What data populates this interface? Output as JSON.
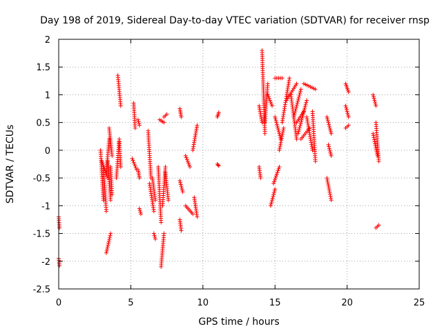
{
  "chart_data": {
    "type": "scatter",
    "title": "Day 198 of 2019, Sidereal Day-to-day VTEC variation (SDTVAR) for receiver rnsp",
    "xlabel": "GPS time / hours",
    "ylabel": "SDTVAR / TECUs",
    "xlim": [
      0,
      25
    ],
    "ylim": [
      -2.5,
      2
    ],
    "xticks": [
      "0",
      "5",
      "10",
      "15",
      "20",
      "25"
    ],
    "yticks": [
      "2",
      "1.5",
      "1",
      "0.5",
      "0",
      "-0.5",
      "-1",
      "-1.5",
      "-2",
      "-2.5"
    ],
    "grid": true,
    "legend": "none",
    "marker": "plus",
    "color": "#ff0000",
    "segments": [
      [
        0.0,
        -1.2,
        0.05,
        -1.4
      ],
      [
        0.0,
        -1.95,
        0.05,
        -2.08
      ],
      [
        2.9,
        0.0,
        3.1,
        -0.9
      ],
      [
        3.0,
        -0.2,
        3.4,
        -0.5
      ],
      [
        3.1,
        -0.3,
        3.3,
        -1.1
      ],
      [
        3.3,
        -0.4,
        3.5,
        0.2
      ],
      [
        3.4,
        -0.2,
        3.6,
        -0.9
      ],
      [
        3.5,
        0.4,
        3.7,
        -0.1
      ],
      [
        3.6,
        -0.3,
        3.7,
        -0.8
      ],
      [
        3.3,
        -1.85,
        3.6,
        -1.5
      ],
      [
        4.1,
        1.35,
        4.3,
        0.8
      ],
      [
        4.0,
        -0.5,
        4.2,
        0.2
      ],
      [
        4.2,
        0.15,
        4.3,
        -0.3
      ],
      [
        5.2,
        0.85,
        5.3,
        0.4
      ],
      [
        5.1,
        -0.15,
        5.4,
        -0.35
      ],
      [
        5.5,
        -0.35,
        5.6,
        -0.5
      ],
      [
        5.5,
        0.55,
        5.6,
        0.45
      ],
      [
        5.6,
        -1.05,
        5.7,
        -1.15
      ],
      [
        6.2,
        0.35,
        6.4,
        -0.5
      ],
      [
        6.3,
        -0.6,
        6.6,
        -1.1
      ],
      [
        6.5,
        -0.5,
        6.7,
        -0.9
      ],
      [
        6.6,
        -1.5,
        6.7,
        -1.6
      ],
      [
        6.9,
        -0.3,
        7.1,
        -1.3
      ],
      [
        7.0,
        0.55,
        7.3,
        0.5
      ],
      [
        7.2,
        -1.0,
        7.4,
        -0.3
      ],
      [
        7.1,
        -2.1,
        7.3,
        -1.5
      ],
      [
        7.3,
        0.6,
        7.5,
        0.65
      ],
      [
        7.4,
        -0.4,
        7.6,
        -0.9
      ],
      [
        8.4,
        0.75,
        8.5,
        0.6
      ],
      [
        8.4,
        -0.55,
        8.6,
        -0.75
      ],
      [
        8.4,
        -1.25,
        8.5,
        -1.45
      ],
      [
        8.8,
        -0.1,
        9.1,
        -0.3
      ],
      [
        8.8,
        -1.0,
        9.3,
        -1.15
      ],
      [
        9.3,
        0.0,
        9.6,
        0.45
      ],
      [
        9.4,
        -0.85,
        9.6,
        -1.2
      ],
      [
        11.0,
        0.6,
        11.1,
        0.68
      ],
      [
        11.0,
        -0.25,
        11.1,
        -0.28
      ],
      [
        13.9,
        -0.3,
        14.0,
        -0.5
      ],
      [
        13.9,
        0.8,
        14.1,
        0.5
      ],
      [
        14.1,
        1.8,
        14.3,
        0.3
      ],
      [
        14.3,
        0.5,
        14.5,
        1.2
      ],
      [
        14.5,
        1.0,
        14.8,
        0.8
      ],
      [
        14.7,
        -1.0,
        15.0,
        -0.7
      ],
      [
        14.9,
        -0.6,
        15.3,
        -0.3
      ],
      [
        15.0,
        0.6,
        15.4,
        0.2
      ],
      [
        15.0,
        1.3,
        15.5,
        1.3
      ],
      [
        15.3,
        0.0,
        15.6,
        0.4
      ],
      [
        15.5,
        0.5,
        16.0,
        1.3
      ],
      [
        15.8,
        0.9,
        16.5,
        1.2
      ],
      [
        16.1,
        1.0,
        16.5,
        0.2
      ],
      [
        16.3,
        0.6,
        16.8,
        1.1
      ],
      [
        16.5,
        0.5,
        17.0,
        0.7
      ],
      [
        16.6,
        0.3,
        17.2,
        0.9
      ],
      [
        16.8,
        0.2,
        17.4,
        0.4
      ],
      [
        17.0,
        1.2,
        17.8,
        1.1
      ],
      [
        17.2,
        0.6,
        17.6,
        0.0
      ],
      [
        17.6,
        0.7,
        17.8,
        -0.2
      ],
      [
        18.6,
        0.6,
        18.9,
        0.3
      ],
      [
        18.6,
        -0.5,
        18.9,
        -0.9
      ],
      [
        18.7,
        0.1,
        18.9,
        -0.1
      ],
      [
        19.9,
        1.2,
        20.1,
        1.05
      ],
      [
        19.9,
        0.8,
        20.1,
        0.6
      ],
      [
        19.9,
        0.4,
        20.1,
        0.45
      ],
      [
        21.8,
        1.0,
        22.0,
        0.8
      ],
      [
        21.8,
        0.3,
        22.1,
        -0.1
      ],
      [
        22.0,
        -1.4,
        22.2,
        -1.35
      ],
      [
        22.0,
        0.5,
        22.2,
        -0.2
      ]
    ]
  }
}
